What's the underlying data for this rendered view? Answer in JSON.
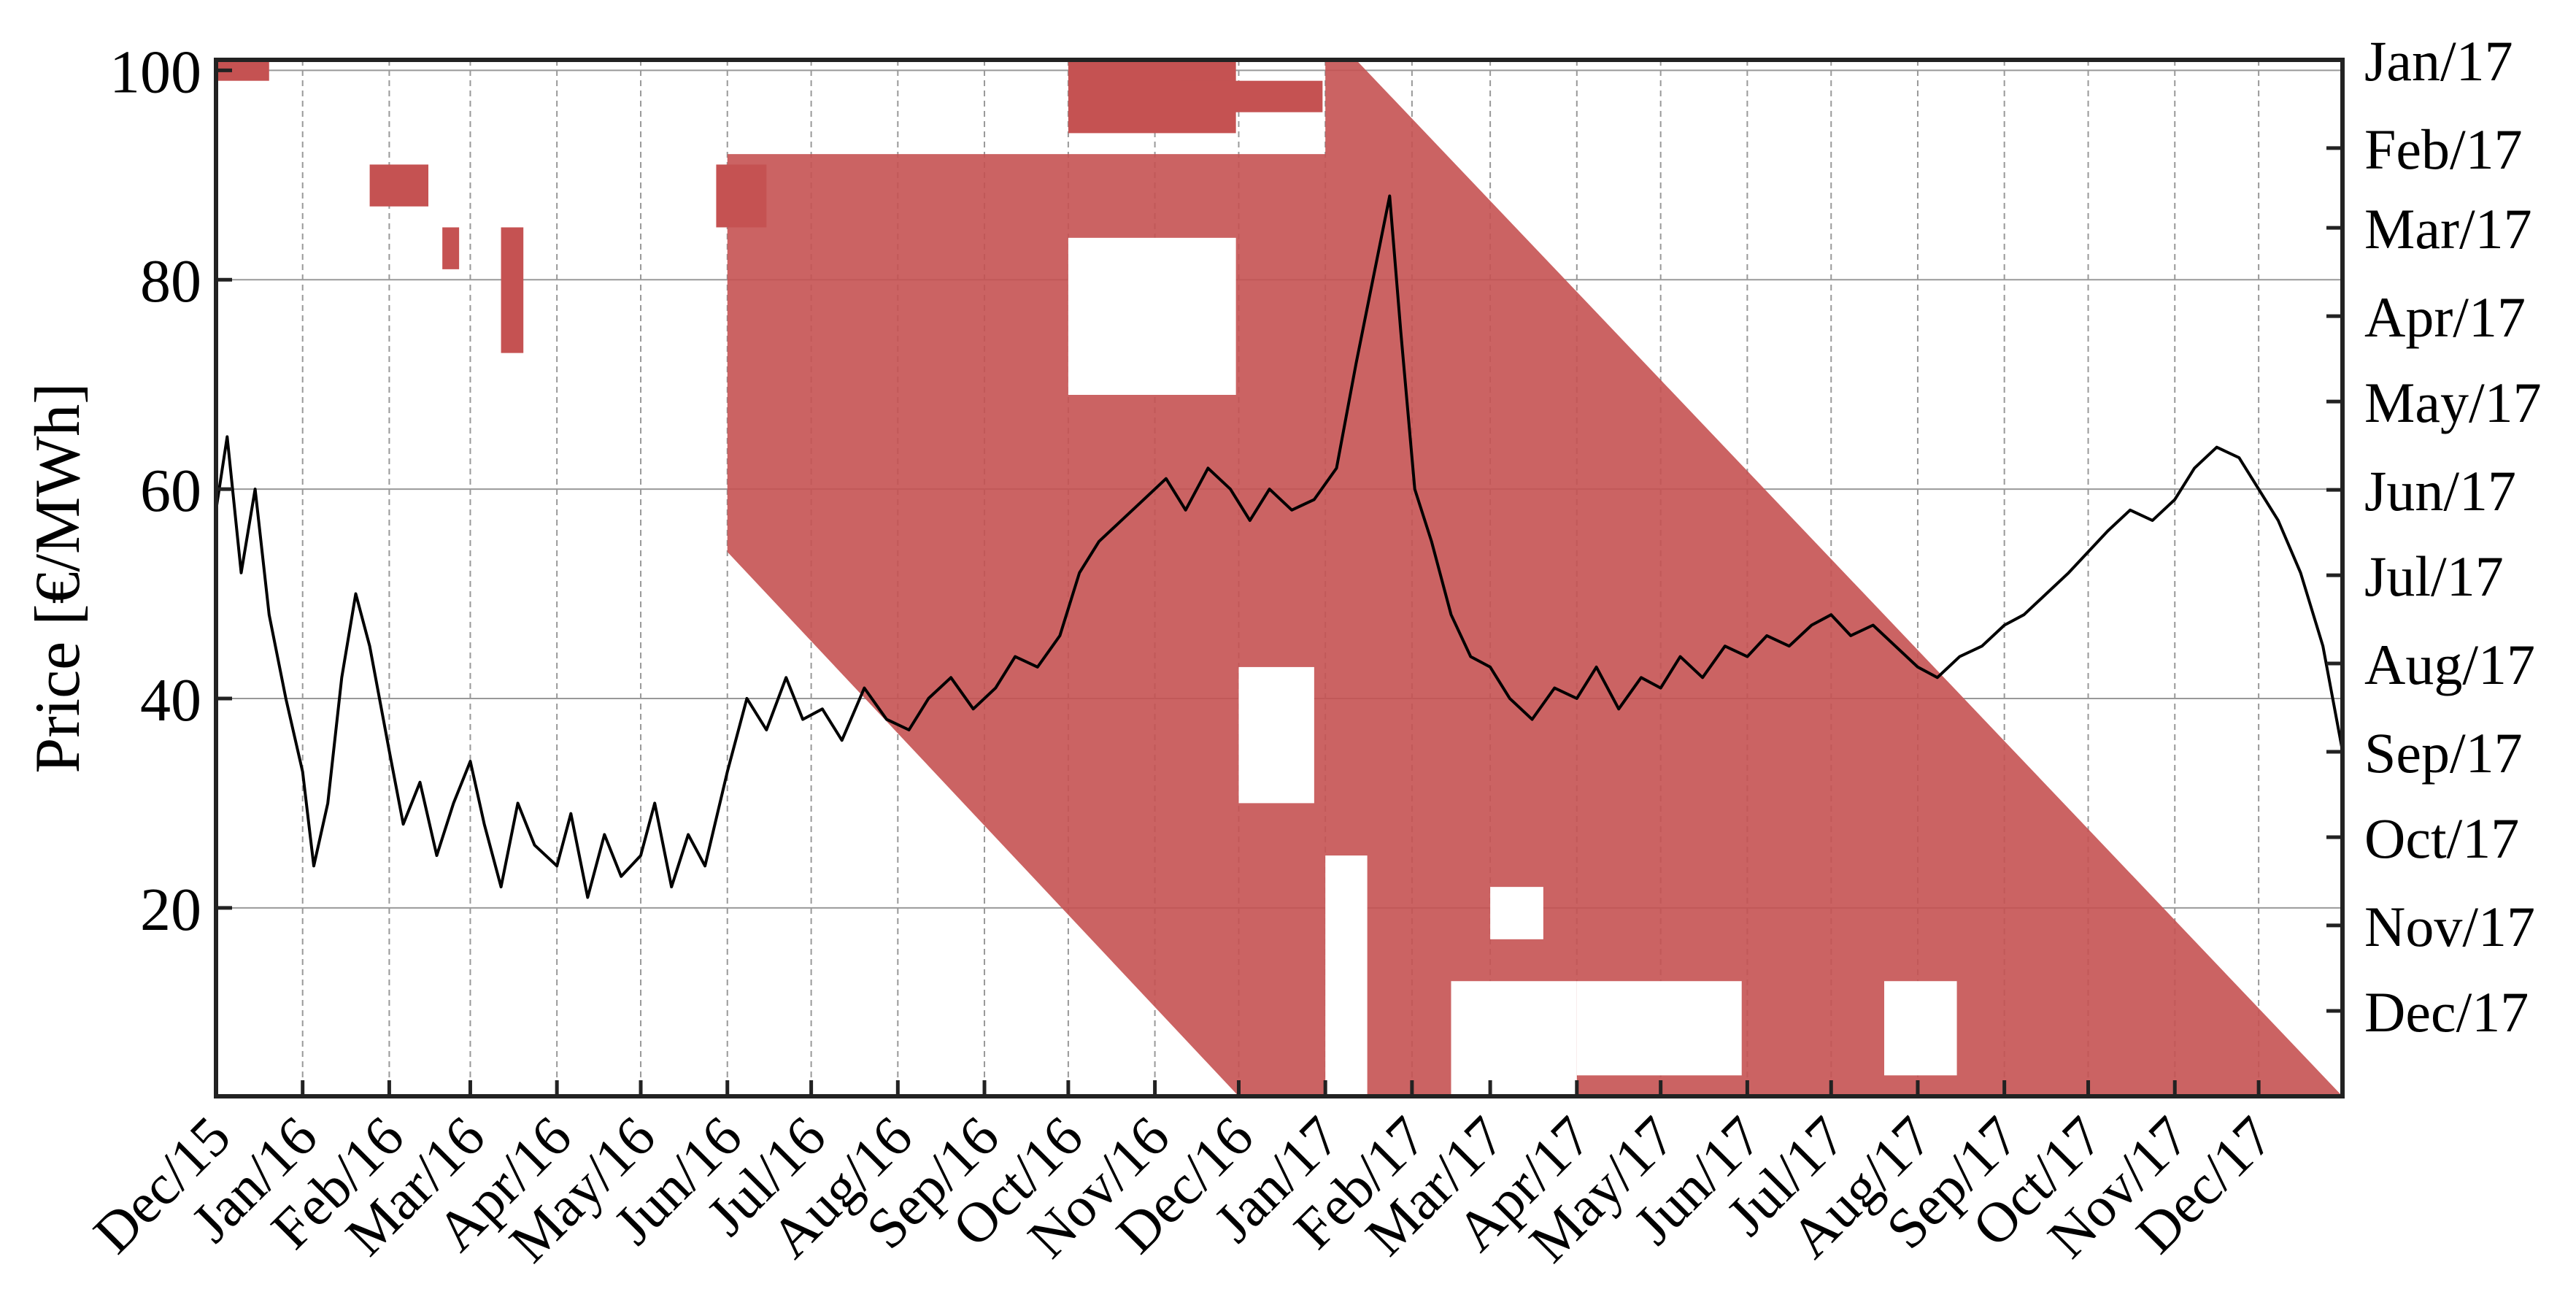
{
  "chart_data": {
    "type": "line",
    "title": "",
    "xlabel": "",
    "ylabel": "Price [€/MWh]",
    "ylim": [
      2,
      101
    ],
    "yticks": [
      20,
      40,
      60,
      80,
      100
    ],
    "xlim": [
      "2015-12-01",
      "2017-12-31"
    ],
    "x_tick_labels": [
      "Dec/15",
      "Jan/16",
      "Feb/16",
      "Mar/16",
      "Apr/16",
      "May/16",
      "Jun/16",
      "Jul/16",
      "Aug/16",
      "Sep/16",
      "Oct/16",
      "Nov/16",
      "Dec/16",
      "Jan/17",
      "Feb/17",
      "Mar/17",
      "Apr/17",
      "May/17",
      "Jun/17",
      "Jul/17",
      "Aug/17",
      "Sep/17",
      "Oct/17",
      "Nov/17",
      "Dec/17"
    ],
    "right_axis": {
      "tick_labels": [
        "Jan/17",
        "Feb/17",
        "Mar/17",
        "Apr/17",
        "May/17",
        "Jun/17",
        "Jul/17",
        "Aug/17",
        "Sep/17",
        "Oct/17",
        "Nov/17",
        "Dec/17"
      ],
      "range": [
        "2017-01-01",
        "2017-12-31"
      ],
      "inverted": true
    },
    "grid": true,
    "colors": {
      "price_line": "#000000",
      "region_fill": "#c55252",
      "axis": "#222222",
      "grid": "#999999"
    },
    "series": [
      {
        "points": [
          [
            "2015-12-01",
            58
          ],
          [
            "2015-12-05",
            65
          ],
          [
            "2015-12-10",
            52
          ],
          [
            "2015-12-15",
            60
          ],
          [
            "2015-12-20",
            48
          ],
          [
            "2015-12-26",
            40
          ],
          [
            "2016-01-01",
            33
          ],
          [
            "2016-01-05",
            24
          ],
          [
            "2016-01-10",
            30
          ],
          [
            "2016-01-15",
            42
          ],
          [
            "2016-01-20",
            50
          ],
          [
            "2016-01-25",
            45
          ],
          [
            "2016-02-01",
            35
          ],
          [
            "2016-02-06",
            28
          ],
          [
            "2016-02-12",
            32
          ],
          [
            "2016-02-18",
            25
          ],
          [
            "2016-02-24",
            30
          ],
          [
            "2016-03-01",
            34
          ],
          [
            "2016-03-06",
            28
          ],
          [
            "2016-03-12",
            22
          ],
          [
            "2016-03-18",
            30
          ],
          [
            "2016-03-24",
            26
          ],
          [
            "2016-04-01",
            24
          ],
          [
            "2016-04-06",
            29
          ],
          [
            "2016-04-12",
            21
          ],
          [
            "2016-04-18",
            27
          ],
          [
            "2016-04-24",
            23
          ],
          [
            "2016-05-01",
            25
          ],
          [
            "2016-05-06",
            30
          ],
          [
            "2016-05-12",
            22
          ],
          [
            "2016-05-18",
            27
          ],
          [
            "2016-05-24",
            24
          ],
          [
            "2016-06-01",
            33
          ],
          [
            "2016-06-08",
            40
          ],
          [
            "2016-06-15",
            37
          ],
          [
            "2016-06-22",
            42
          ],
          [
            "2016-06-28",
            38
          ],
          [
            "2016-07-05",
            39
          ],
          [
            "2016-07-12",
            36
          ],
          [
            "2016-07-20",
            41
          ],
          [
            "2016-07-28",
            38
          ],
          [
            "2016-08-05",
            37
          ],
          [
            "2016-08-12",
            40
          ],
          [
            "2016-08-20",
            42
          ],
          [
            "2016-08-28",
            39
          ],
          [
            "2016-09-05",
            41
          ],
          [
            "2016-09-12",
            44
          ],
          [
            "2016-09-20",
            43
          ],
          [
            "2016-09-28",
            46
          ],
          [
            "2016-10-05",
            52
          ],
          [
            "2016-10-12",
            55
          ],
          [
            "2016-10-20",
            57
          ],
          [
            "2016-10-28",
            59
          ],
          [
            "2016-11-05",
            61
          ],
          [
            "2016-11-12",
            58
          ],
          [
            "2016-11-20",
            62
          ],
          [
            "2016-11-28",
            60
          ],
          [
            "2016-12-05",
            57
          ],
          [
            "2016-12-12",
            60
          ],
          [
            "2016-12-20",
            58
          ],
          [
            "2016-12-28",
            59
          ],
          [
            "2017-01-05",
            62
          ],
          [
            "2017-01-12",
            72
          ],
          [
            "2017-01-18",
            80
          ],
          [
            "2017-01-24",
            88
          ],
          [
            "2017-01-28",
            75
          ],
          [
            "2017-02-02",
            60
          ],
          [
            "2017-02-08",
            55
          ],
          [
            "2017-02-15",
            48
          ],
          [
            "2017-02-22",
            44
          ],
          [
            "2017-03-01",
            43
          ],
          [
            "2017-03-08",
            40
          ],
          [
            "2017-03-16",
            38
          ],
          [
            "2017-03-24",
            41
          ],
          [
            "2017-04-01",
            40
          ],
          [
            "2017-04-08",
            43
          ],
          [
            "2017-04-16",
            39
          ],
          [
            "2017-04-24",
            42
          ],
          [
            "2017-05-01",
            41
          ],
          [
            "2017-05-08",
            44
          ],
          [
            "2017-05-16",
            42
          ],
          [
            "2017-05-24",
            45
          ],
          [
            "2017-06-01",
            44
          ],
          [
            "2017-06-08",
            46
          ],
          [
            "2017-06-16",
            45
          ],
          [
            "2017-06-24",
            47
          ],
          [
            "2017-07-01",
            48
          ],
          [
            "2017-07-08",
            46
          ],
          [
            "2017-07-16",
            47
          ],
          [
            "2017-07-24",
            45
          ],
          [
            "2017-08-01",
            43
          ],
          [
            "2017-08-08",
            42
          ],
          [
            "2017-08-16",
            44
          ],
          [
            "2017-08-24",
            45
          ],
          [
            "2017-09-01",
            47
          ],
          [
            "2017-09-08",
            48
          ],
          [
            "2017-09-16",
            50
          ],
          [
            "2017-09-24",
            52
          ],
          [
            "2017-10-01",
            54
          ],
          [
            "2017-10-08",
            56
          ],
          [
            "2017-10-16",
            58
          ],
          [
            "2017-10-24",
            57
          ],
          [
            "2017-11-01",
            59
          ],
          [
            "2017-11-08",
            62
          ],
          [
            "2017-11-16",
            64
          ],
          [
            "2017-11-24",
            63
          ],
          [
            "2017-12-01",
            60
          ],
          [
            "2017-12-08",
            57
          ],
          [
            "2017-12-16",
            52
          ],
          [
            "2017-12-24",
            45
          ],
          [
            "2017-12-31",
            35
          ]
        ]
      }
    ]
  }
}
